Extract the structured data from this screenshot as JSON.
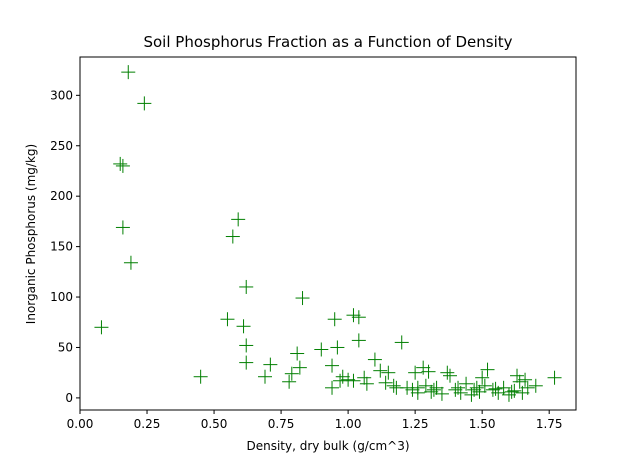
{
  "chart_data": {
    "type": "scatter",
    "title": "Soil Phosphorus Fraction as a Function of Density",
    "xlabel": "Density, dry bulk (g/cm^3)",
    "ylabel": "Inorganic Phosphorus (mg/kg)",
    "xlim": [
      0.0,
      1.85
    ],
    "ylim": [
      -12,
      338
    ],
    "xticks": [
      0.0,
      0.25,
      0.5,
      0.75,
      1.0,
      1.25,
      1.5,
      1.75
    ],
    "xtick_labels": [
      "0.00",
      "0.25",
      "0.50",
      "0.75",
      "1.00",
      "1.25",
      "1.50",
      "1.75"
    ],
    "yticks": [
      0,
      50,
      100,
      150,
      200,
      250,
      300
    ],
    "ytick_labels": [
      "0",
      "50",
      "100",
      "150",
      "200",
      "250",
      "300"
    ],
    "grid": false,
    "marker": "plus",
    "color": "#007f00",
    "x": [
      0.08,
      0.15,
      0.16,
      0.16,
      0.18,
      0.19,
      0.24,
      0.45,
      0.55,
      0.57,
      0.59,
      0.61,
      0.62,
      0.62,
      0.62,
      0.69,
      0.71,
      0.78,
      0.79,
      0.81,
      0.82,
      0.83,
      0.9,
      0.94,
      0.95,
      0.96,
      0.98,
      1.0,
      1.02,
      1.04,
      1.04,
      1.06,
      1.1,
      1.12,
      1.14,
      1.15,
      1.17,
      1.2,
      1.22,
      1.24,
      1.25,
      1.26,
      1.28,
      1.29,
      1.3,
      1.31,
      1.33,
      1.35,
      1.37,
      1.38,
      1.4,
      1.42,
      1.44,
      1.46,
      1.48,
      1.49,
      1.5,
      1.51,
      1.52,
      1.54,
      1.56,
      1.58,
      1.6,
      1.62,
      1.63,
      1.64,
      1.65,
      1.66,
      1.7,
      1.77,
      0.94,
      0.97,
      1.02,
      1.07,
      1.18,
      1.26,
      1.32,
      1.41,
      1.47,
      1.55,
      1.61,
      1.67
    ],
    "y": [
      70,
      232,
      230,
      169,
      323,
      134,
      292,
      21,
      78,
      160,
      177,
      71,
      110,
      52,
      35,
      21,
      33,
      16,
      24,
      44,
      30,
      99,
      48,
      10,
      78,
      50,
      21,
      18,
      82,
      57,
      80,
      20,
      38,
      27,
      15,
      25,
      12,
      55,
      10,
      8,
      25,
      5,
      30,
      12,
      26,
      6,
      10,
      4,
      25,
      22,
      8,
      5,
      14,
      3,
      10,
      6,
      20,
      12,
      28,
      8,
      5,
      10,
      3,
      7,
      22,
      16,
      5,
      18,
      12,
      20,
      32,
      17,
      17,
      14,
      10,
      10,
      8,
      10,
      8,
      9,
      6,
      10
    ]
  }
}
